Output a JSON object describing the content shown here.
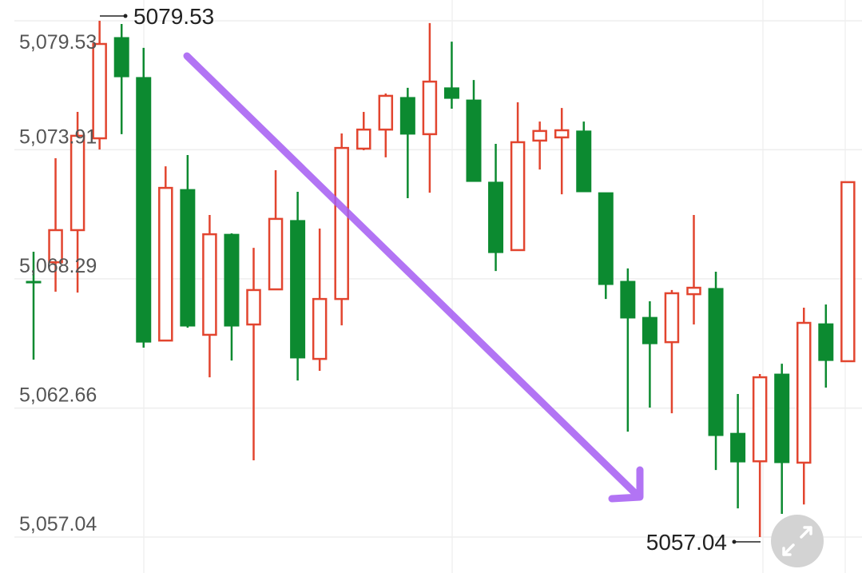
{
  "chart_data": {
    "type": "candlestick",
    "open": [
      5068.18,
      5069.01,
      5070.41,
      5074.41,
      5078.8,
      5077.06,
      5065.6,
      5072.18,
      5065.85,
      5070.23,
      5066.3,
      5067.83,
      5070.83,
      5064.8,
      5067.41,
      5073.96,
      5074.79,
      5076.19,
      5074.59,
      5076.61,
      5076.08,
      5072.5,
      5069.54,
      5074.31,
      5074.45,
      5074.73,
      5072.04,
      5068.18,
      5066.61,
      5065.53,
      5067.62,
      5067.87,
      5061.56,
      5060.34,
      5064.14,
      5060.28,
      5066.33,
      5064.7
    ],
    "high": [
      5069.47,
      5073.54,
      5075.56,
      5079.53,
      5079.39,
      5078.35,
      5073.19,
      5073.68,
      5071.07,
      5070.27,
      5069.64,
      5073.02,
      5072.08,
      5070.48,
      5074.62,
      5075.56,
      5076.36,
      5076.61,
      5079.43,
      5078.62,
      5076.95,
      5074.17,
      5075.98,
      5075.14,
      5075.73,
      5075.14,
      5072.04,
      5068.74,
      5067.31,
      5067.8,
      5071.07,
      5068.6,
      5063.27,
      5064.14,
      5064.59,
      5067.03,
      5067.17,
      5072.5
    ],
    "low": [
      5064.77,
      5067.73,
      5067.69,
      5073.92,
      5074.59,
      5065.29,
      5065.57,
      5066.16,
      5064.0,
      5064.73,
      5060.38,
      5067.83,
      5063.86,
      5064.28,
      5066.26,
      5073.89,
      5073.58,
      5071.8,
      5072.04,
      5075.7,
      5072.53,
      5068.63,
      5069.54,
      5073.05,
      5071.97,
      5072.08,
      5067.41,
      5061.63,
      5062.68,
      5062.43,
      5066.3,
      5059.96,
      5058.29,
      5057.04,
      5058.05,
      5058.46,
      5063.55,
      5064.7
    ],
    "close": [
      5068.11,
      5070.41,
      5074.52,
      5078.52,
      5077.09,
      5065.53,
      5072.25,
      5066.23,
      5070.23,
      5066.23,
      5067.8,
      5070.9,
      5064.84,
      5067.41,
      5073.99,
      5074.79,
      5076.26,
      5074.59,
      5076.88,
      5076.15,
      5072.53,
      5069.43,
      5074.24,
      5074.73,
      5074.76,
      5072.08,
      5068.04,
      5066.58,
      5065.46,
      5067.66,
      5067.9,
      5061.46,
      5060.31,
      5064.0,
      5060.28,
      5066.37,
      5064.73,
      5072.5
    ],
    "up_color": "#e2452f",
    "down_color": "#0c8a30",
    "ylim": [
      5057.04,
      5079.53
    ],
    "yticks": [
      {
        "value": 5057.04,
        "label": "5,057.04"
      },
      {
        "value": 5062.66,
        "label": "5,062.66"
      },
      {
        "value": 5068.29,
        "label": "5,068.29"
      },
      {
        "value": 5073.91,
        "label": "5,073.91"
      },
      {
        "value": 5079.53,
        "label": "5,079.53"
      }
    ],
    "grid": true,
    "max_label": 5079.53,
    "min_label": 5057.04
  }
}
